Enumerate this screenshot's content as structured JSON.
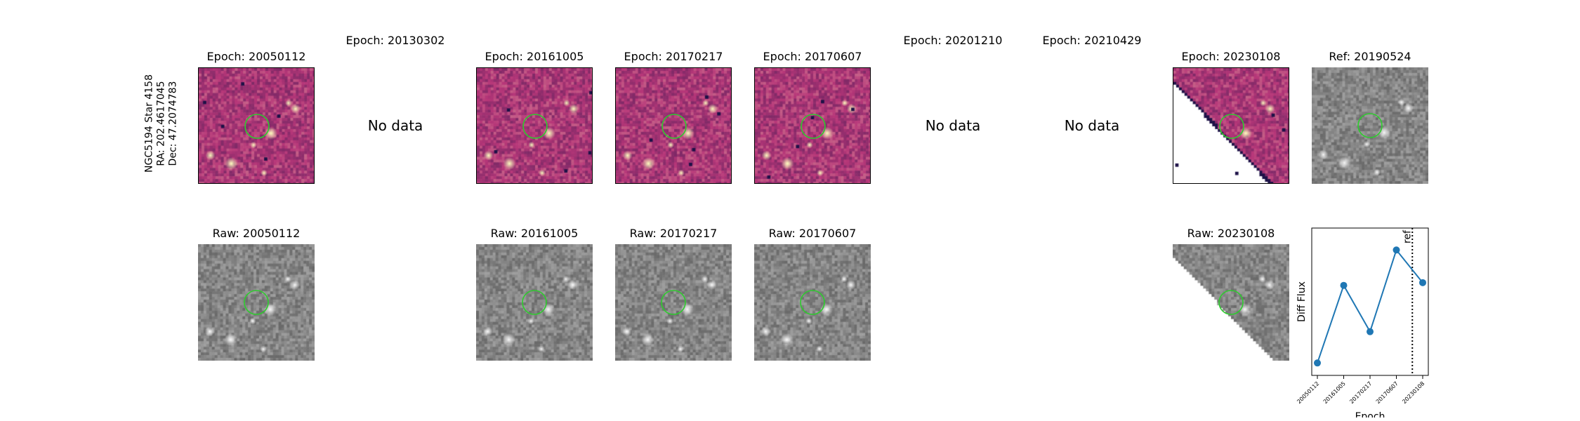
{
  "target_label": [
    "NGC5194 Star 4158",
    "RA: 202.4617045",
    "Dec: 47.2074783"
  ],
  "panels": [
    {
      "title": "Epoch: 20050112",
      "kind": "diff"
    },
    {
      "title": "Epoch: 20130302",
      "kind": "nodata",
      "text": "No data"
    },
    {
      "title": "Epoch: 20161005",
      "kind": "diff"
    },
    {
      "title": "Epoch: 20170217",
      "kind": "diff"
    },
    {
      "title": "Epoch: 20170607",
      "kind": "diff"
    },
    {
      "title": "Epoch: 20201210",
      "kind": "nodata",
      "text": "No data"
    },
    {
      "title": "Epoch: 20210429",
      "kind": "nodata",
      "text": "No data"
    },
    {
      "title": "Epoch: 20230108",
      "kind": "diff_partial"
    },
    {
      "title": "Ref: 20190524",
      "kind": "ref"
    }
  ],
  "raw_panels": [
    {
      "title": "Raw: 20050112",
      "slot": 0
    },
    {
      "title": "Raw: 20161005",
      "slot": 2
    },
    {
      "title": "Raw: 20170217",
      "slot": 3
    },
    {
      "title": "Raw: 20170607",
      "slot": 4
    },
    {
      "title": "Raw: 20230108",
      "slot": 7,
      "partial": true
    }
  ],
  "colors": {
    "diff_low": "#1d1147",
    "diff_mid": "#b73779",
    "diff_high": "#fcfdbf",
    "circle": "#2ecc2e",
    "line": "#1f77b4"
  },
  "chart_data": {
    "type": "line",
    "title": "",
    "xlabel": "Epoch",
    "ylabel": "Diff Flux",
    "x": [
      "20050112",
      "20161005",
      "20170217",
      "20170607",
      "20230108"
    ],
    "series": [
      {
        "values": [
          0.05,
          0.62,
          0.28,
          0.88,
          0.64
        ]
      }
    ],
    "ylim": [
      0,
      1
    ],
    "ref_line": {
      "label": "ref",
      "after_index": 3
    },
    "yticks": "none",
    "grid": false
  }
}
